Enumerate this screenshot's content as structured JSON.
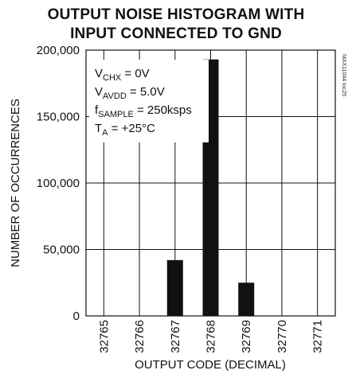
{
  "chart_data": {
    "type": "bar",
    "title": "OUTPUT NOISE HISTOGRAM WITH INPUT CONNECTED TO GND",
    "title_lines": [
      "OUTPUT NOISE HISTOGRAM WITH",
      "INPUT CONNECTED TO GND"
    ],
    "xlabel": "OUTPUT CODE (DECIMAL)",
    "ylabel": "NUMBER OF OCCURRENCES",
    "categories": [
      "32765",
      "32766",
      "32767",
      "32768",
      "32769",
      "32770",
      "32771"
    ],
    "values": [
      0,
      0,
      42000,
      193000,
      25000,
      0,
      0
    ],
    "ylim": [
      0,
      200000
    ],
    "yticks": [
      0,
      50000,
      100000,
      150000,
      200000
    ],
    "ytick_labels": [
      "0",
      "50,000",
      "100,000",
      "150,000",
      "200,000"
    ],
    "grid": true,
    "bar_color": "#111111",
    "annotations": [
      {
        "base": "V",
        "sub": "CHX",
        "rest": " = 0V"
      },
      {
        "base": "V",
        "sub": "AVDD",
        "rest": " = 5.0V"
      },
      {
        "base": "f",
        "sub": "SAMPLE",
        "rest": " = 250ksps"
      },
      {
        "base": "T",
        "sub": "A",
        "rest": " = +25°C"
      }
    ],
    "watermark": "MAX11044 toc25"
  }
}
